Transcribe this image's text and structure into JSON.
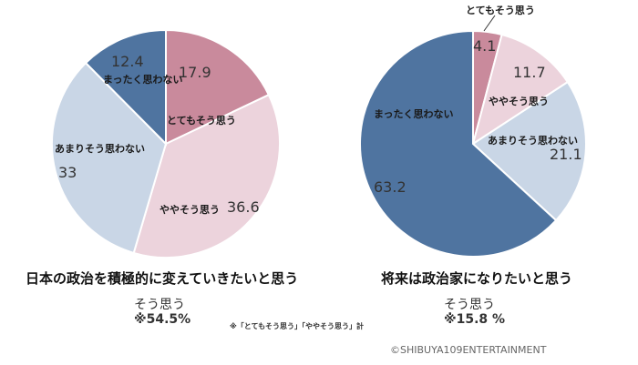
{
  "colors": {
    "totemo": "#c98a9c",
    "yaya": "#ecd3dc",
    "amari": "#c9d6e6",
    "mattaku": "#4f74a0"
  },
  "chart_data": [
    {
      "type": "pie",
      "title": "日本の政治を積極的に変えていきたいと思う",
      "categories": [
        "とてもそう思う",
        "ややそう思う",
        "あまりそう思わない",
        "まったく思わない"
      ],
      "values": [
        17.9,
        36.6,
        33.0,
        12.4
      ],
      "summary_label": "そう思う",
      "summary_value": "※54.5%"
    },
    {
      "type": "pie",
      "title": "将来は政治家になりたいと思う",
      "categories": [
        "とてもそう思う",
        "ややそう思う",
        "あまりそう思わない",
        "まったく思わない"
      ],
      "values": [
        4.1,
        11.7,
        21.1,
        63.2
      ],
      "summary_label": "そう思う",
      "summary_value": "※15.8 %"
    }
  ],
  "footnote": "※「とてもそう思う」「ややそう思う」計",
  "copyright": "©SHIBUYA109ENTERTAINMENT"
}
